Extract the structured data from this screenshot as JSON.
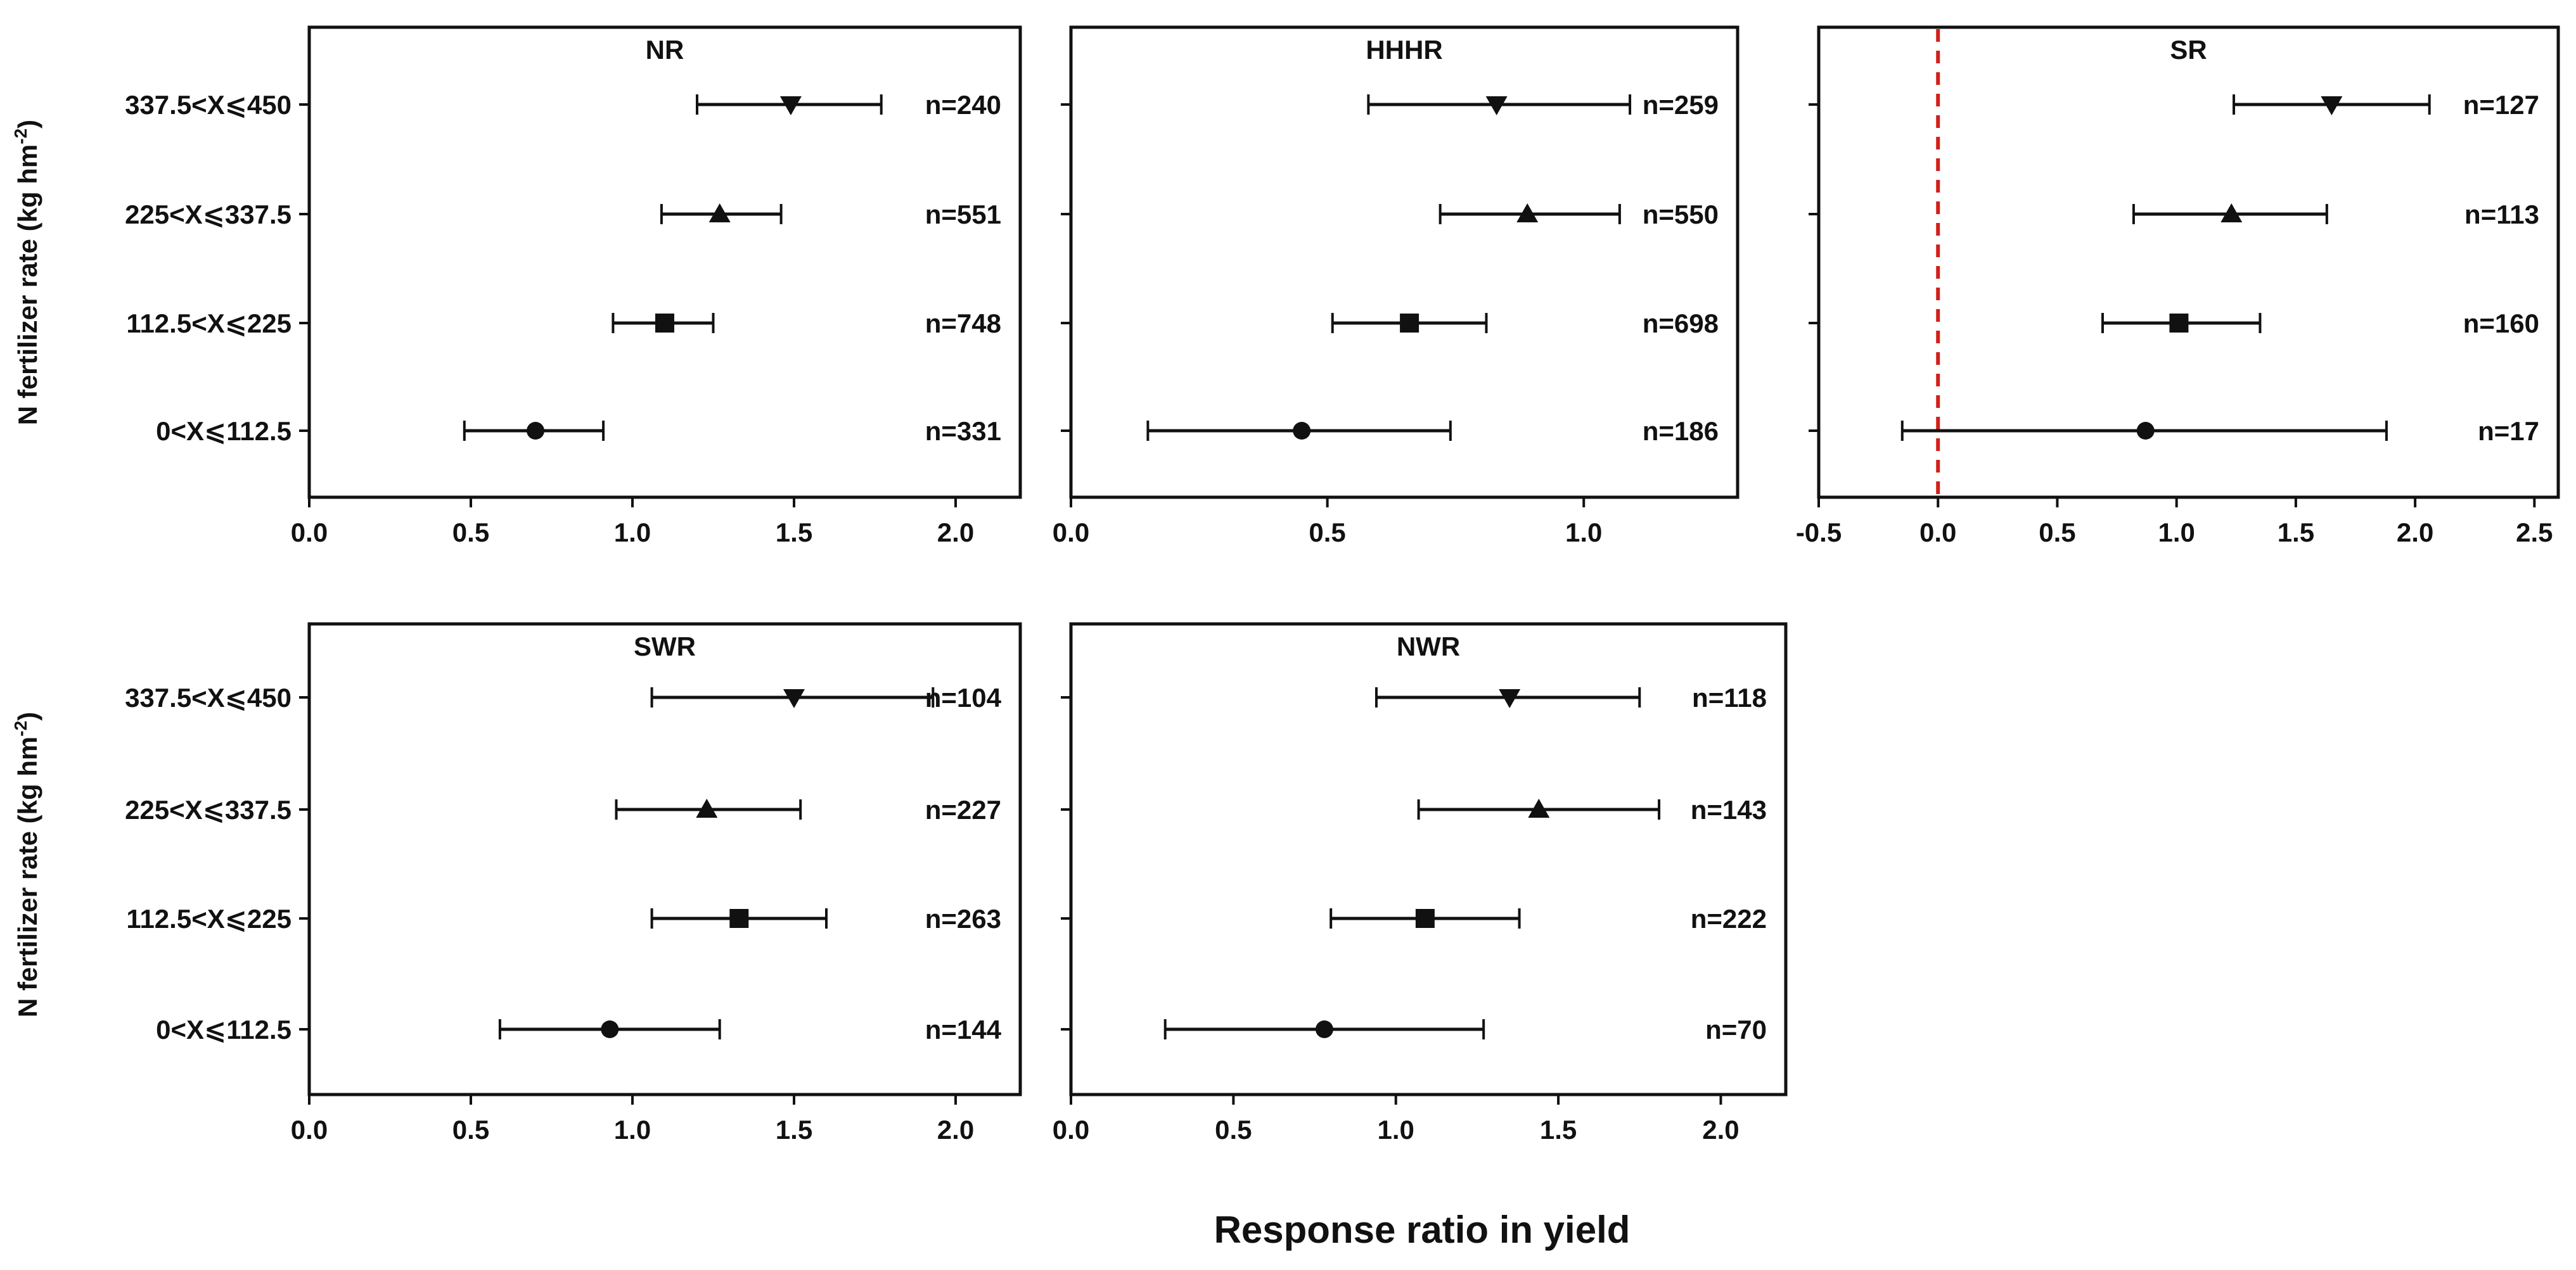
{
  "figure": {
    "xlabel": "Response ratio in yield",
    "ylabel": "N fertilizer rate (kg hm",
    "ylabel_sup": "-2",
    "ylabel_close": ")"
  },
  "chart_data": [
    {
      "type": "forest",
      "title": "NR",
      "categories": [
        "337.5<X⩽450",
        "225<X⩽337.5",
        "112.5<X⩽225",
        "0<X⩽112.5"
      ],
      "markers": [
        "triangle-down",
        "triangle-up",
        "square",
        "circle"
      ],
      "values": [
        1.49,
        1.27,
        1.1,
        0.7
      ],
      "lower": [
        1.2,
        1.09,
        0.94,
        0.48
      ],
      "upper": [
        1.77,
        1.46,
        1.25,
        0.91
      ],
      "n_labels": [
        "n=240",
        "n=551",
        "n=748",
        "n=331"
      ],
      "xlim": [
        0,
        2.2
      ],
      "xticks": [
        0.0,
        0.5,
        1.0,
        1.5,
        2.0
      ],
      "xtick_labels": [
        "0.0",
        "0.5",
        "1.0",
        "1.5",
        "2.0"
      ],
      "reference_line": null
    },
    {
      "type": "forest",
      "title": "HHHR",
      "categories": [
        "337.5<X⩽450",
        "225<X⩽337.5",
        "112.5<X⩽225",
        "0<X⩽112.5"
      ],
      "markers": [
        "triangle-down",
        "triangle-up",
        "square",
        "circle"
      ],
      "values": [
        0.83,
        0.89,
        0.66,
        0.45
      ],
      "lower": [
        0.58,
        0.72,
        0.51,
        0.15
      ],
      "upper": [
        1.09,
        1.07,
        0.81,
        0.74
      ],
      "n_labels": [
        "n=259",
        "n=550",
        "n=698",
        "n=186"
      ],
      "xlim": [
        0,
        1.3
      ],
      "xticks": [
        0.0,
        0.5,
        1.0
      ],
      "xtick_labels": [
        "0.0",
        "0.5",
        "1.0"
      ],
      "reference_line": null
    },
    {
      "type": "forest",
      "title": "SR",
      "categories": [
        "337.5<X⩽450",
        "225<X⩽337.5",
        "112.5<X⩽225",
        "0<X⩽112.5"
      ],
      "markers": [
        "triangle-down",
        "triangle-up",
        "square",
        "circle"
      ],
      "values": [
        1.65,
        1.23,
        1.01,
        0.87
      ],
      "lower": [
        1.24,
        0.82,
        0.69,
        -0.15
      ],
      "upper": [
        2.06,
        1.63,
        1.35,
        1.88
      ],
      "n_labels": [
        "n=127",
        "n=113",
        "n=160",
        "n=17"
      ],
      "xlim": [
        -0.5,
        2.6
      ],
      "xticks": [
        -0.5,
        0.0,
        0.5,
        1.0,
        1.5,
        2.0,
        2.5
      ],
      "xtick_labels": [
        "-0.5",
        "0.0",
        "0.5",
        "1.0",
        "1.5",
        "2.0",
        "2.5"
      ],
      "reference_line": 0
    },
    {
      "type": "forest",
      "title": "SWR",
      "categories": [
        "337.5<X⩽450",
        "225<X⩽337.5",
        "112.5<X⩽225",
        "0<X⩽112.5"
      ],
      "markers": [
        "triangle-down",
        "triangle-up",
        "square",
        "circle"
      ],
      "values": [
        1.5,
        1.23,
        1.33,
        0.93
      ],
      "lower": [
        1.06,
        0.95,
        1.06,
        0.59
      ],
      "upper": [
        1.93,
        1.52,
        1.6,
        1.27
      ],
      "n_labels": [
        "n=104",
        "n=227",
        "n=263",
        "n=144"
      ],
      "xlim": [
        0,
        2.2
      ],
      "xticks": [
        0.0,
        0.5,
        1.0,
        1.5,
        2.0
      ],
      "xtick_labels": [
        "0.0",
        "0.5",
        "1.0",
        "1.5",
        "2.0"
      ],
      "reference_line": null
    },
    {
      "type": "forest",
      "title": "NWR",
      "categories": [
        "337.5<X⩽450",
        "225<X⩽337.5",
        "112.5<X⩽225",
        "0<X⩽112.5"
      ],
      "markers": [
        "triangle-down",
        "triangle-up",
        "square",
        "circle"
      ],
      "values": [
        1.35,
        1.44,
        1.09,
        0.78
      ],
      "lower": [
        0.94,
        1.07,
        0.8,
        0.29
      ],
      "upper": [
        1.75,
        1.81,
        1.38,
        1.27
      ],
      "n_labels": [
        "n=118",
        "n=143",
        "n=222",
        "n=70"
      ],
      "xlim": [
        0,
        2.2
      ],
      "xticks": [
        0.0,
        0.5,
        1.0,
        1.5,
        2.0
      ],
      "xtick_labels": [
        "0.0",
        "0.5",
        "1.0",
        "1.5",
        "2.0"
      ],
      "reference_line": null
    }
  ],
  "colors": {
    "axis": "#111111",
    "marker": "#111111",
    "reference_line": "#d0201a",
    "background": "#ffffff"
  }
}
